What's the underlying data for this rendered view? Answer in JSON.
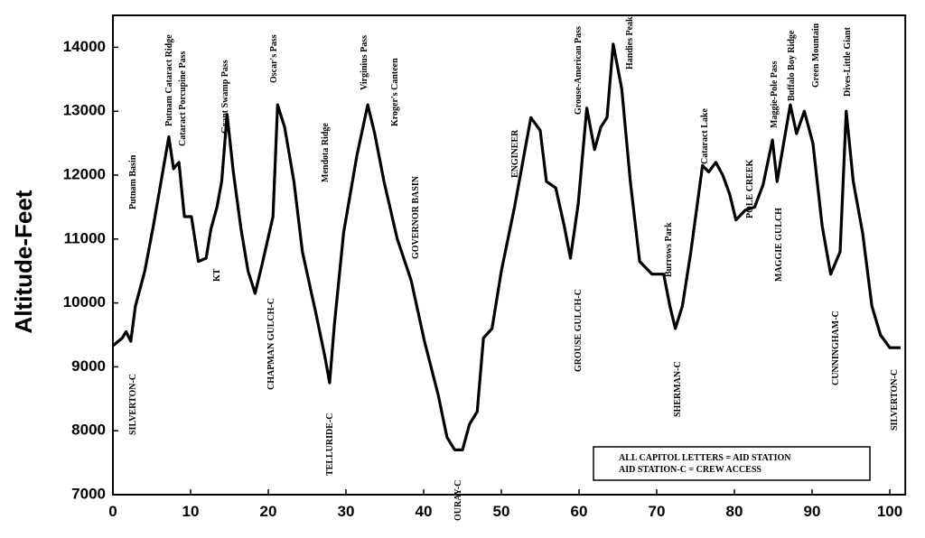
{
  "chart_data": {
    "type": "line",
    "y_label": "Altitude-Feet",
    "xlim": [
      0,
      102
    ],
    "xticks": [
      0,
      10,
      20,
      30,
      40,
      50,
      60,
      70,
      80,
      90,
      100
    ],
    "ylim": [
      7000,
      14500
    ],
    "yticks": [
      7000,
      8000,
      9000,
      10000,
      11000,
      12000,
      13000,
      14000
    ],
    "grid": false,
    "series": [
      {
        "color": "#000000",
        "x": [
          0,
          1.2,
          1.7,
          2.3,
          2.9,
          4.1,
          5.2,
          6.2,
          7.2,
          7.8,
          8.5,
          9.2,
          10.1,
          11,
          12,
          12.6,
          13.4,
          14,
          14.7,
          15.5,
          16.5,
          17.4,
          18.3,
          19.2,
          20.6,
          21.2,
          22.1,
          23.3,
          24.4,
          26.2,
          27.3,
          27.9,
          28.5,
          29.7,
          31.4,
          32.8,
          33.7,
          34.9,
          36.6,
          38.4,
          40.1,
          41.9,
          43,
          44,
          45,
          45.9,
          46.9,
          47.7,
          48.8,
          50,
          51.7,
          52.9,
          53.8,
          55,
          55.8,
          57,
          58.1,
          58.9,
          59.9,
          61,
          62,
          62.8,
          63.6,
          64.4,
          65.5,
          66.6,
          67.8,
          69.4,
          70.9,
          71.7,
          72.4,
          73.3,
          74.4,
          75.9,
          76.7,
          77.6,
          78.5,
          79.4,
          80.2,
          81.4,
          82.6,
          83.7,
          84.9,
          85.5,
          86.2,
          87.2,
          88,
          89,
          90.1,
          91.3,
          92.4,
          93.6,
          94.4,
          95.3,
          96.5,
          97.7,
          98.8,
          100,
          101.4
        ],
        "values": [
          9330,
          9450,
          9550,
          9400,
          9950,
          10500,
          11200,
          11900,
          12600,
          12100,
          12200,
          11350,
          11350,
          10650,
          10700,
          11150,
          11500,
          11900,
          12950,
          12050,
          11150,
          10500,
          10150,
          10600,
          11350,
          13100,
          12750,
          11900,
          10800,
          9800,
          9150,
          8750,
          9650,
          11100,
          12300,
          13100,
          12650,
          11900,
          11000,
          10350,
          9400,
          8550,
          7900,
          7700,
          7700,
          8100,
          8300,
          9450,
          9600,
          10500,
          11500,
          12300,
          12900,
          12700,
          11900,
          11800,
          11200,
          10700,
          11550,
          13050,
          12400,
          12750,
          12900,
          14050,
          13350,
          11900,
          10650,
          10450,
          10450,
          9950,
          9600,
          9950,
          10800,
          12150,
          12050,
          12200,
          12000,
          11700,
          11300,
          11450,
          11500,
          11850,
          12550,
          11900,
          12400,
          13100,
          12650,
          13000,
          12500,
          11200,
          10450,
          10800,
          13000,
          11900,
          11100,
          9950,
          9500,
          9300,
          9300
        ]
      }
    ],
    "annotations": [
      "SILVERTON-C",
      "Putnam Basin",
      "Putnam Cataract Ridge",
      "Cataract Porcupine Pass",
      "KT",
      "Grant Swamp Pass",
      "CHAPMAN GULCH-C",
      "Oscar's Pass",
      "TELLURIDE-C",
      "Mendota Ridge",
      "Virginius Pass",
      "Kroger's Canteen",
      "GOVERNOR BASIN",
      "OURAY-C",
      "ENGINEER",
      "GROUSE GULCH-C",
      "Grouse-American Pass",
      "Handies Peak",
      "Burrows Park",
      "SHERMAN-C",
      "Cataract Lake",
      "POLE CREEK",
      "Maggie-Pole Pass",
      "MAGGIE GULCH",
      "Buffalo Boy Ridge",
      "Green Mountain",
      "Dives-Little Giant",
      "CUNNINGHAM-C",
      "SILVERTON-C"
    ],
    "note_lines": [
      "ALL CAPITOL LETTERS = AID STATION",
      "AID STATION-C = CREW ACCESS"
    ]
  }
}
